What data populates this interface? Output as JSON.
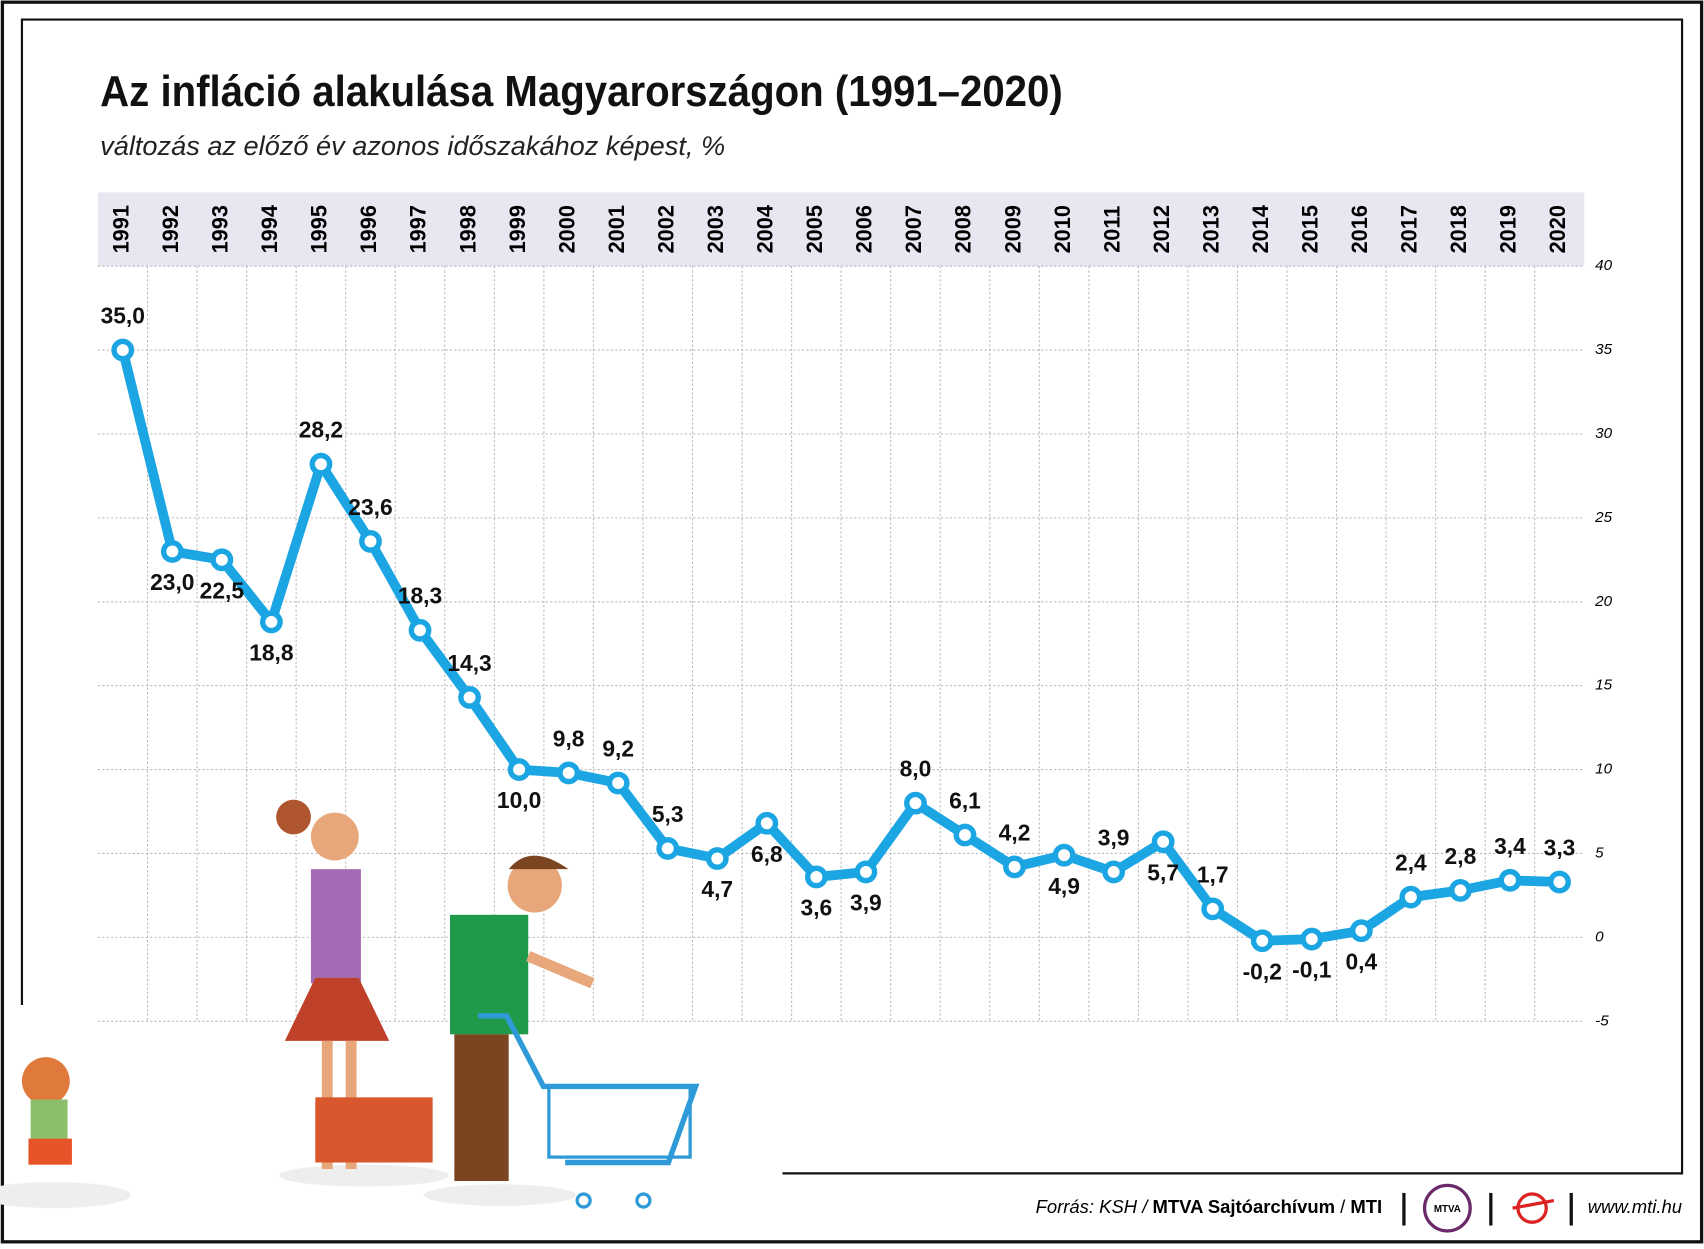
{
  "chart_data": {
    "type": "line",
    "title": "Az infláció alakulása Magyarországon (1991–2020)",
    "subtitle": "változás az előző év azonos időszakához képest, %",
    "categories": [
      "1991",
      "1992",
      "1993",
      "1994",
      "1995",
      "1996",
      "1997",
      "1998",
      "1999",
      "2000",
      "2001",
      "2002",
      "2003",
      "2004",
      "2005",
      "2006",
      "2007",
      "2008",
      "2009",
      "2010",
      "2011",
      "2012",
      "2013",
      "2014",
      "2015",
      "2016",
      "2017",
      "2018",
      "2019",
      "2020"
    ],
    "values": [
      35.0,
      23.0,
      22.5,
      18.8,
      28.2,
      23.6,
      18.3,
      14.3,
      10.0,
      9.8,
      9.2,
      5.3,
      4.7,
      6.8,
      3.6,
      3.9,
      8.0,
      6.1,
      4.2,
      4.9,
      3.9,
      5.7,
      1.7,
      -0.2,
      -0.1,
      0.4,
      2.4,
      2.8,
      3.4,
      3.3
    ],
    "value_labels": [
      "35,0",
      "23,0",
      "22,5",
      "18,8",
      "28,2",
      "23,6",
      "18,3",
      "14,3",
      "10,0",
      "9,8",
      "9,2",
      "5,3",
      "4,7",
      "6,8",
      "3,6",
      "3,9",
      "8,0",
      "6,1",
      "4,2",
      "4,9",
      "3,9",
      "5,7",
      "1,7",
      "-0,2",
      "-0,1",
      "0,4",
      "2,4",
      "2,8",
      "3,4",
      "3,3"
    ],
    "color": "#1ba6e3",
    "ylim": [
      -5,
      40
    ],
    "yticks": [
      -5,
      0,
      5,
      10,
      15,
      20,
      25,
      30,
      35,
      40
    ],
    "grid": true
  },
  "footer": {
    "source": [
      "Forrás: KSH / ",
      "MTVA Sajtóarchívum",
      " / ",
      "MTI"
    ],
    "logo": "MTVA",
    "url": "www.mti.hu"
  }
}
